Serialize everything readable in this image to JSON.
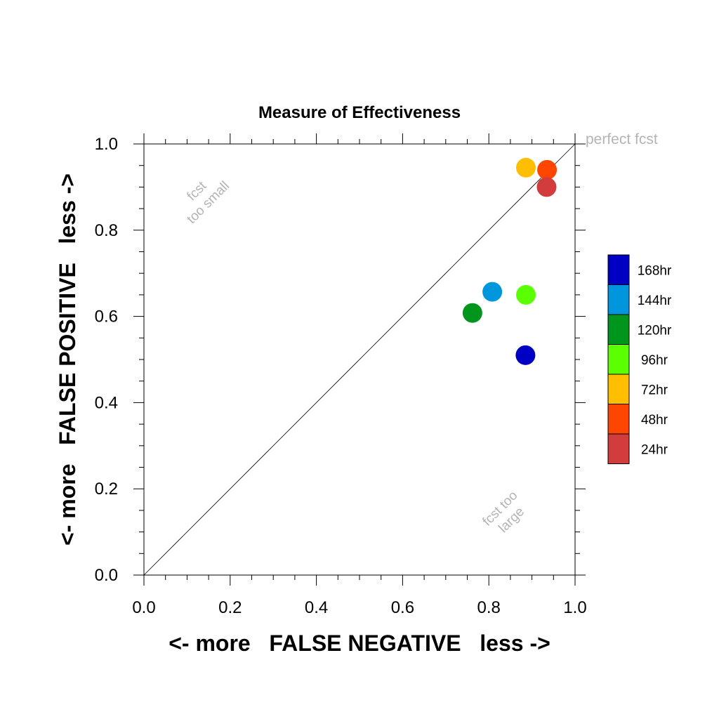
{
  "chart_data": {
    "type": "scatter",
    "title": "Measure of Effectiveness",
    "xlabel": "<- more   FALSE NEGATIVE   less ->",
    "ylabel": "<- more   FALSE POSITIVE   less ->",
    "xlim": [
      0.0,
      1.0
    ],
    "ylim": [
      0.0,
      1.0
    ],
    "xticks": [
      "0.0",
      "0.2",
      "0.4",
      "0.6",
      "0.8",
      "1.0"
    ],
    "yticks": [
      "0.0",
      "0.2",
      "0.4",
      "0.6",
      "0.8",
      "1.0"
    ],
    "grid": false,
    "reference_line": {
      "from": [
        0,
        0
      ],
      "to": [
        1,
        1
      ]
    },
    "annotations": {
      "top_right": "perfect fcst",
      "upper_left": [
        "fcst",
        "too small"
      ],
      "lower_right": [
        "fcst too",
        "large"
      ]
    },
    "legend_position": "right",
    "series": [
      {
        "name": "168hr",
        "color": "#0000c4",
        "x": 0.885,
        "y": 0.51
      },
      {
        "name": "144hr",
        "color": "#0096de",
        "x": 0.808,
        "y": 0.657
      },
      {
        "name": "120hr",
        "color": "#00961e",
        "x": 0.762,
        "y": 0.608
      },
      {
        "name": "96hr",
        "color": "#5aff00",
        "x": 0.886,
        "y": 0.65
      },
      {
        "name": "72hr",
        "color": "#ffbe00",
        "x": 0.886,
        "y": 0.945
      },
      {
        "name": "48hr",
        "color": "#ff4600",
        "x": 0.935,
        "y": 0.94
      },
      {
        "name": "24hr",
        "color": "#d23c3c",
        "x": 0.934,
        "y": 0.9
      }
    ]
  }
}
